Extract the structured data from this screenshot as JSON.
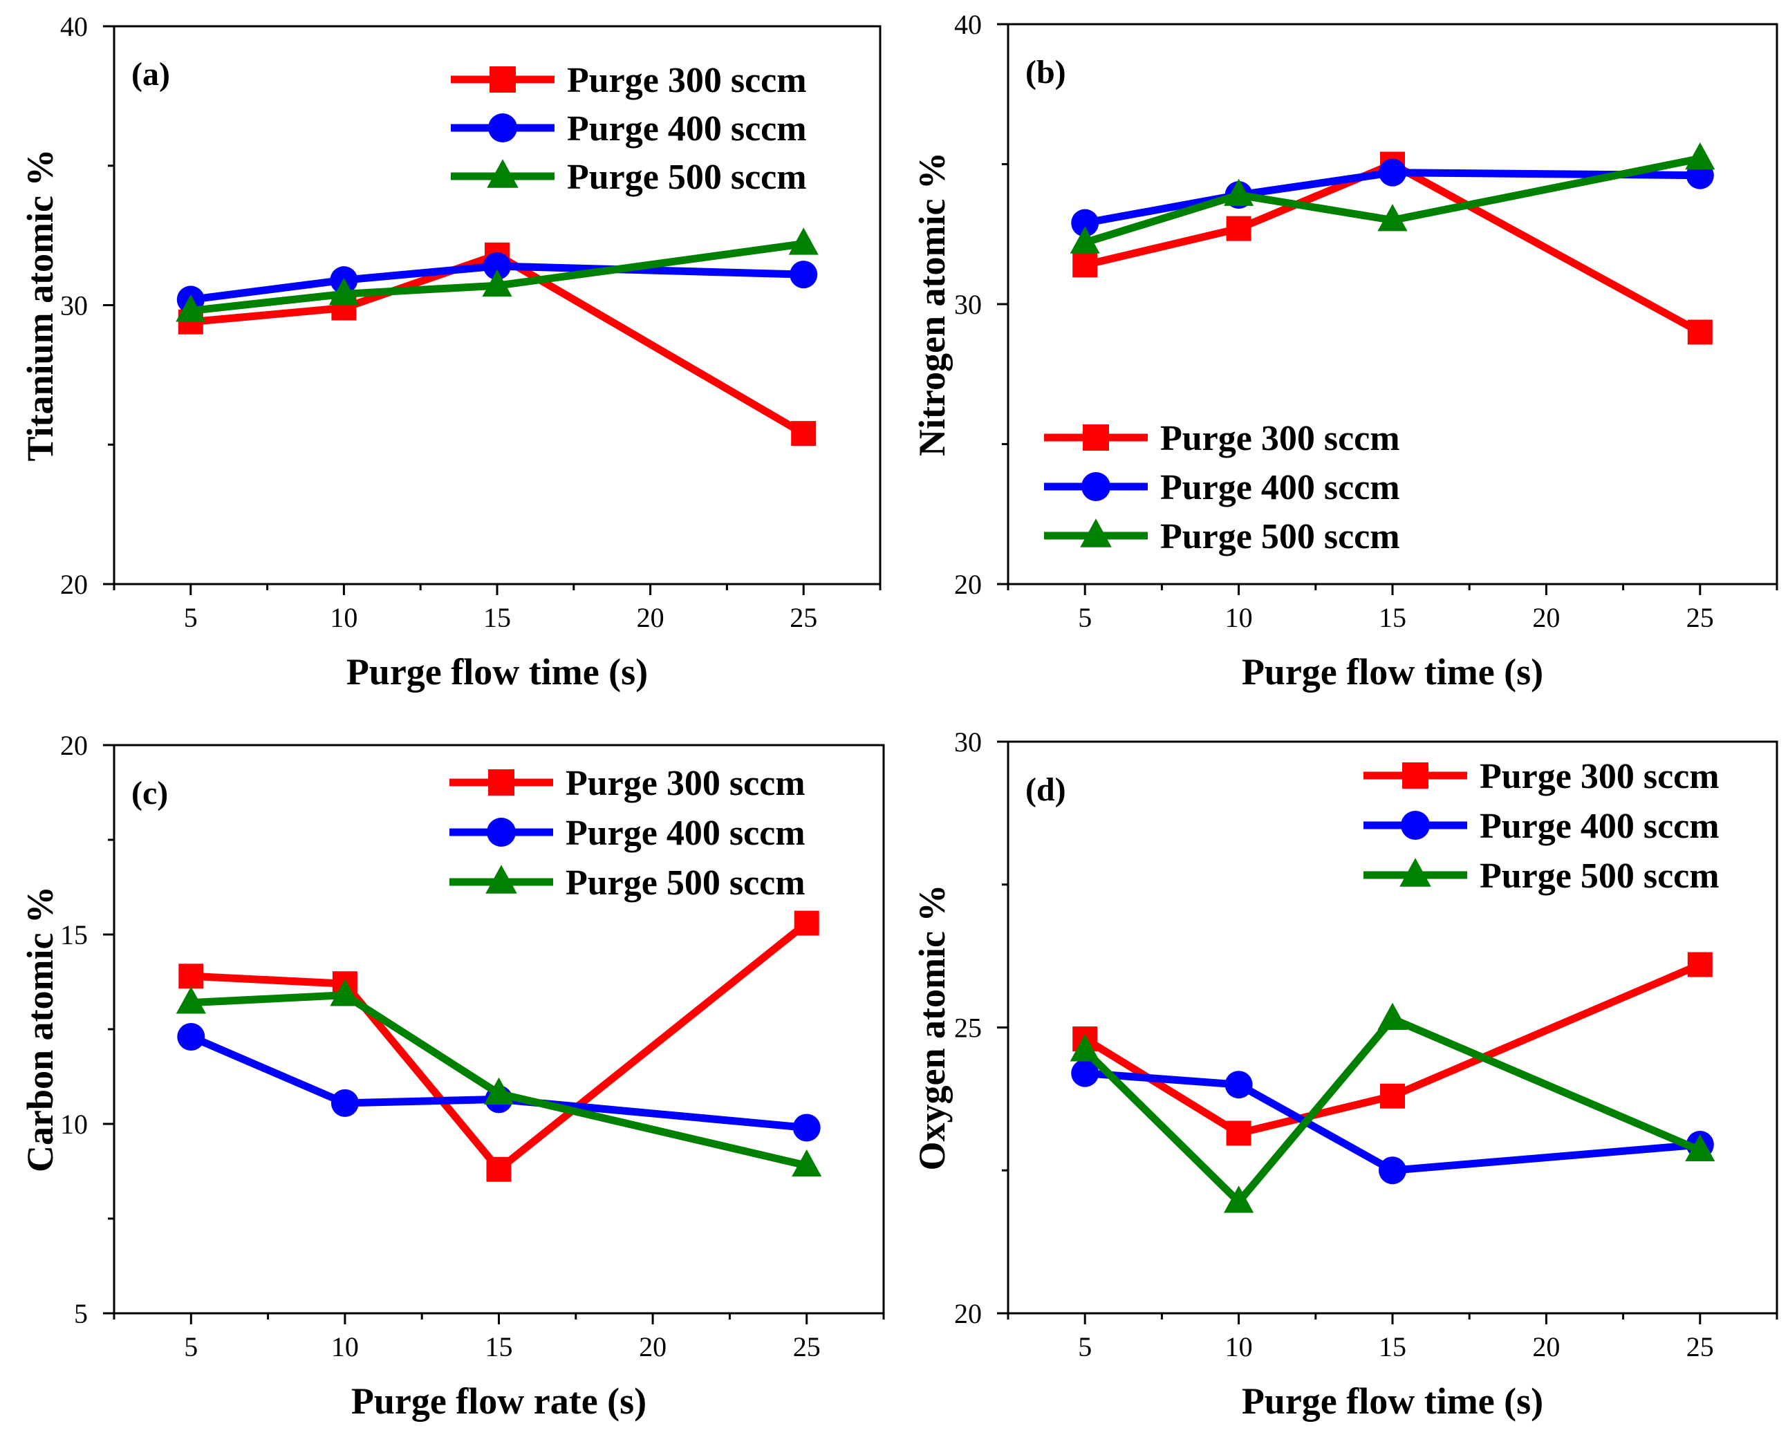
{
  "chart_data": [
    {
      "type": "line",
      "panel_label": "(a)",
      "xlabel": "Purge flow time (s)",
      "ylabel": "Titanium atomic %",
      "xlim": [
        2.5,
        27.5
      ],
      "ylim": [
        20,
        40
      ],
      "xticks": [
        5,
        10,
        15,
        20,
        25
      ],
      "yticks": [
        20,
        30,
        40
      ],
      "legend_position": "top-right",
      "series": [
        {
          "name": "Purge 300 sccm",
          "color": "#ff0000",
          "marker": "square",
          "x": [
            5,
            10,
            15,
            25
          ],
          "values": [
            29.4,
            29.9,
            31.8,
            25.4
          ]
        },
        {
          "name": "Purge 400 sccm",
          "color": "#0000ff",
          "marker": "circle",
          "x": [
            5,
            10,
            15,
            25
          ],
          "values": [
            30.2,
            30.9,
            31.4,
            31.1
          ]
        },
        {
          "name": "Purge 500 sccm",
          "color": "#008000",
          "marker": "triangle",
          "x": [
            5,
            10,
            15,
            25
          ],
          "values": [
            29.8,
            30.4,
            30.7,
            32.2
          ]
        }
      ]
    },
    {
      "type": "line",
      "panel_label": "(b)",
      "xlabel": "Purge flow time (s)",
      "ylabel": "Nitrogen atomic %",
      "xlim": [
        2.5,
        27.5
      ],
      "ylim": [
        20,
        40
      ],
      "xticks": [
        5,
        10,
        15,
        20,
        25
      ],
      "yticks": [
        20,
        30,
        40
      ],
      "legend_position": "bottom-left",
      "series": [
        {
          "name": "Purge 300 sccm",
          "color": "#ff0000",
          "marker": "square",
          "x": [
            5,
            10,
            15,
            25
          ],
          "values": [
            31.4,
            32.7,
            35.0,
            29.0
          ]
        },
        {
          "name": "Purge 400 sccm",
          "color": "#0000ff",
          "marker": "circle",
          "x": [
            5,
            10,
            15,
            25
          ],
          "values": [
            32.9,
            33.9,
            34.7,
            34.6
          ]
        },
        {
          "name": "Purge 500 sccm",
          "color": "#008000",
          "marker": "triangle",
          "x": [
            5,
            10,
            15,
            25
          ],
          "values": [
            32.2,
            33.9,
            33.0,
            35.2
          ]
        }
      ]
    },
    {
      "type": "line",
      "panel_label": "(c)",
      "xlabel": "Purge flow rate (s)",
      "ylabel": "Carbon atomic %",
      "xlim": [
        2.5,
        27.5
      ],
      "ylim": [
        5,
        20
      ],
      "xticks": [
        5,
        10,
        15,
        20,
        25
      ],
      "yticks": [
        5,
        10,
        15,
        20
      ],
      "legend_position": "top-right",
      "series": [
        {
          "name": "Purge 300 sccm",
          "color": "#ff0000",
          "marker": "square",
          "x": [
            5,
            10,
            15,
            25
          ],
          "values": [
            13.9,
            13.7,
            8.8,
            15.3
          ]
        },
        {
          "name": "Purge 400 sccm",
          "color": "#0000ff",
          "marker": "circle",
          "x": [
            5,
            10,
            15,
            25
          ],
          "values": [
            12.3,
            10.55,
            10.65,
            9.9
          ]
        },
        {
          "name": "Purge 500 sccm",
          "color": "#008000",
          "marker": "triangle",
          "x": [
            5,
            10,
            15,
            25
          ],
          "values": [
            13.2,
            13.4,
            10.8,
            8.9
          ]
        }
      ]
    },
    {
      "type": "line",
      "panel_label": "(d)",
      "xlabel": "Purge flow time (s)",
      "ylabel": "Oxygen atomic %",
      "xlim": [
        2.5,
        27.5
      ],
      "ylim": [
        20,
        30
      ],
      "xticks": [
        5,
        10,
        15,
        20,
        25
      ],
      "yticks": [
        20,
        25,
        30
      ],
      "legend_position": "top-right",
      "series": [
        {
          "name": "Purge 300 sccm",
          "color": "#ff0000",
          "marker": "square",
          "x": [
            5,
            10,
            15,
            25
          ],
          "values": [
            24.8,
            23.15,
            23.8,
            26.1
          ]
        },
        {
          "name": "Purge 400 sccm",
          "color": "#0000ff",
          "marker": "circle",
          "x": [
            5,
            10,
            15,
            25
          ],
          "values": [
            24.2,
            24.0,
            22.5,
            22.95
          ]
        },
        {
          "name": "Purge 500 sccm",
          "color": "#008000",
          "marker": "triangle",
          "x": [
            5,
            10,
            15,
            25
          ],
          "values": [
            24.6,
            21.95,
            25.15,
            22.85
          ]
        }
      ]
    }
  ]
}
